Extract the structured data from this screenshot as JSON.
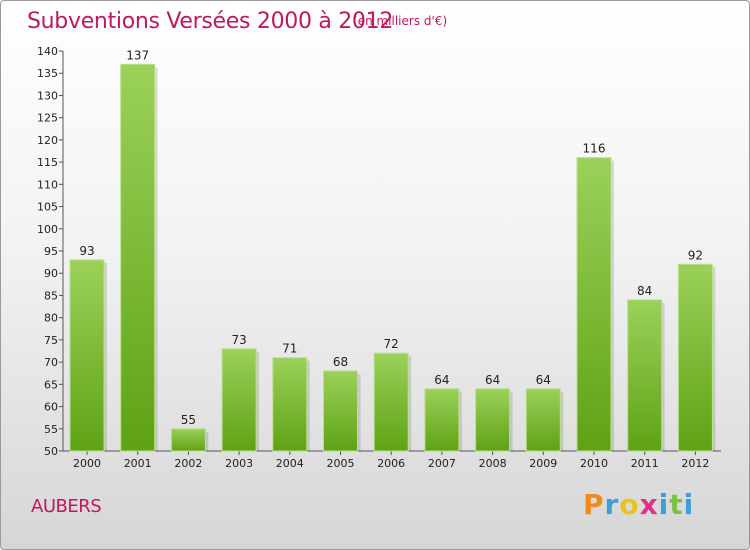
{
  "header": {
    "title": "Subventions Versées 2000 à 2012",
    "subtitle": "(en milliers d'€)"
  },
  "footer": {
    "place": "AUBERS",
    "logo": {
      "text": "Proxiti",
      "letters": [
        "P",
        "r",
        "o",
        "x",
        "i",
        "t",
        "i"
      ]
    }
  },
  "colors": {
    "title": "#c0185f",
    "bar_top": "#9bd15a",
    "bar_bottom": "#5fa215",
    "logo_letters": [
      "#f08a1c",
      "#3aa0d8",
      "#e8c31c",
      "#e5308a",
      "#3aa0d8",
      "#7cc242",
      "#3aa0d8"
    ]
  },
  "chart_data": {
    "type": "bar",
    "title": "Subventions Versées 2000 à 2012",
    "subtitle": "(en milliers d'€)",
    "categories": [
      "2000",
      "2001",
      "2002",
      "2003",
      "2004",
      "2005",
      "2006",
      "2007",
      "2008",
      "2009",
      "2010",
      "2011",
      "2012"
    ],
    "values": [
      93,
      137,
      55,
      73,
      71,
      68,
      72,
      64,
      64,
      64,
      116,
      84,
      92
    ],
    "ylim": [
      50,
      140
    ],
    "yticks": [
      50,
      55,
      60,
      65,
      70,
      75,
      80,
      85,
      90,
      95,
      100,
      105,
      110,
      115,
      120,
      125,
      130,
      135,
      140
    ],
    "grid": false,
    "data_labels": true
  }
}
